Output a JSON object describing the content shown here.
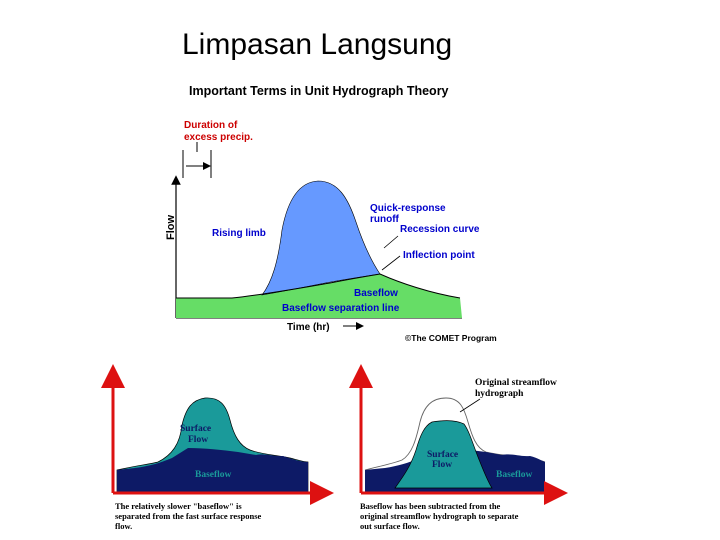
{
  "slide_title": "Limpasan Langsung",
  "top_diagram": {
    "title": "Important Terms in Unit Hydrograph Theory",
    "duration_label_line1": "Duration of",
    "duration_label_line2": "excess precip.",
    "y_axis_label": "Flow",
    "x_axis_label": "Time (hr)",
    "rising_limb": "Rising limb",
    "quick_response_line1": "Quick-response",
    "quick_response_line2": "runoff",
    "recession_curve": "Recession curve",
    "inflection_point": "Inflection point",
    "baseflow": "Baseflow",
    "baseflow_separation": "Baseflow separation line",
    "copyright": "©The COMET Program",
    "colors": {
      "runoff": "#6699ff",
      "baseflow": "#66dd66",
      "labels": "#0000cc",
      "duration": "#cc0000"
    }
  },
  "left_diagram": {
    "surface_line1": "Surface",
    "surface_line2": "Flow",
    "baseflow": "Baseflow",
    "caption_line1": "The relatively slower \"baseflow\" is",
    "caption_line2": "separated from the fast surface response",
    "caption_line3": "flow.",
    "colors": {
      "surface": "#1a9a9a",
      "baseflow": "#0d1a66",
      "axis": "#dd1111"
    }
  },
  "right_diagram": {
    "original_line1": "Original streamflow",
    "original_line2": "hydrograph",
    "surface_line1": "Surface",
    "surface_line2": "Flow",
    "baseflow": "Baseflow",
    "caption_line1": "Baseflow has been subtracted from the",
    "caption_line2": "original streamflow hydrograph to separate",
    "caption_line3": "out surface flow.",
    "colors": {
      "surface": "#1a9a9a",
      "baseflow": "#0d1a66",
      "axis": "#dd1111"
    }
  }
}
